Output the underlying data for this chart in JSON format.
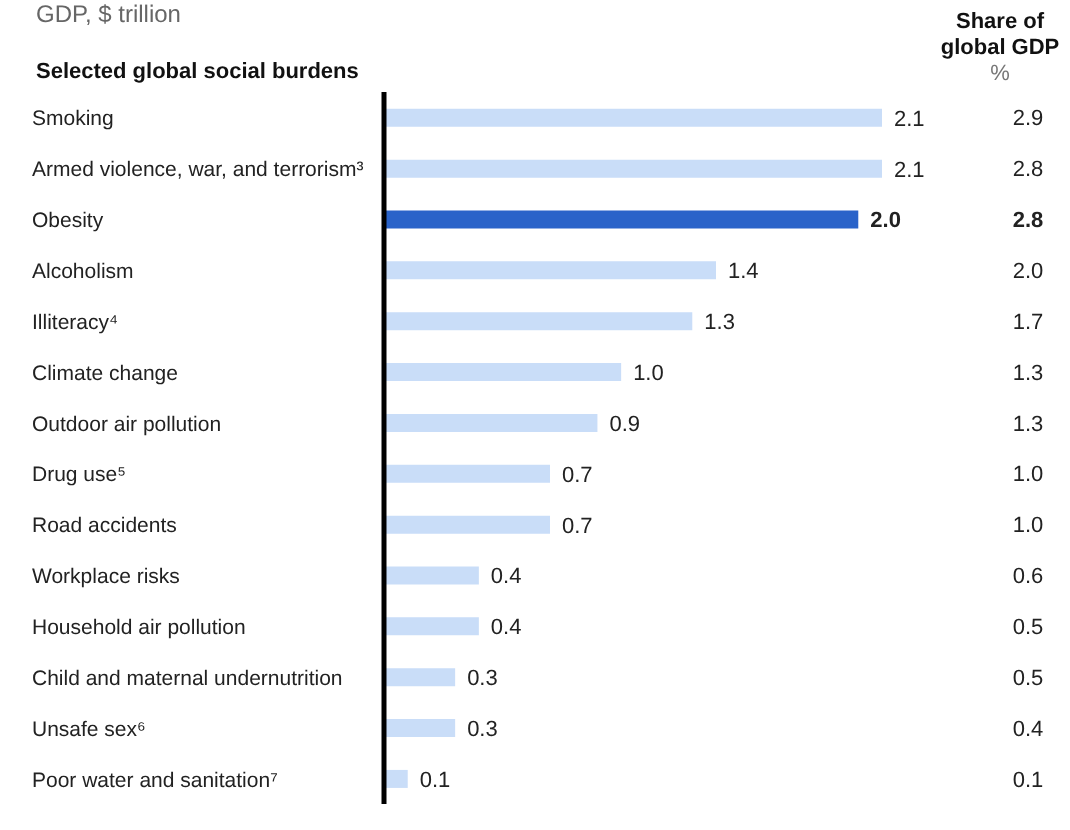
{
  "chart_data": {
    "type": "bar",
    "orientation": "horizontal",
    "subtitle": "GDP, $ trillion",
    "ylabel": "Selected global social burdens",
    "categories": [
      "Smoking",
      "Armed violence, war, and terrorism³",
      "Obesity",
      "Alcoholism",
      "Illiteracy⁴",
      "Climate change",
      "Outdoor air pollution",
      "Drug use⁵",
      "Road accidents",
      "Workplace risks",
      "Household air pollution",
      "Child and maternal undernutrition",
      "Unsafe sex⁶",
      "Poor water and sanitation⁷"
    ],
    "values": [
      2.1,
      2.1,
      2.0,
      1.4,
      1.3,
      1.0,
      0.9,
      0.7,
      0.7,
      0.4,
      0.4,
      0.3,
      0.3,
      0.1
    ],
    "value_labels": [
      "2.1",
      "2.1",
      "2.0",
      "1.4",
      "1.3",
      "1.0",
      "0.9",
      "0.7",
      "0.7",
      "0.4",
      "0.4",
      "0.3",
      "0.3",
      "0.1"
    ],
    "colors": [
      "#c9ddf8",
      "#c9ddf8",
      "#2a63c9",
      "#c9ddf8",
      "#c9ddf8",
      "#c9ddf8",
      "#c9ddf8",
      "#c9ddf8",
      "#c9ddf8",
      "#c9ddf8",
      "#c9ddf8",
      "#c9ddf8",
      "#c9ddf8",
      "#c9ddf8"
    ],
    "xlim": [
      0,
      2.1
    ],
    "tick_labels": "y",
    "annotations": [
      "Share of global GDP",
      "%",
      "2.9",
      "2.8",
      "2.8",
      "2.0",
      "1.7",
      "1.3",
      "1.3",
      "1.0",
      "1.0",
      "0.6",
      "0.5",
      "0.5",
      "0.4",
      "0.1"
    ]
  }
}
